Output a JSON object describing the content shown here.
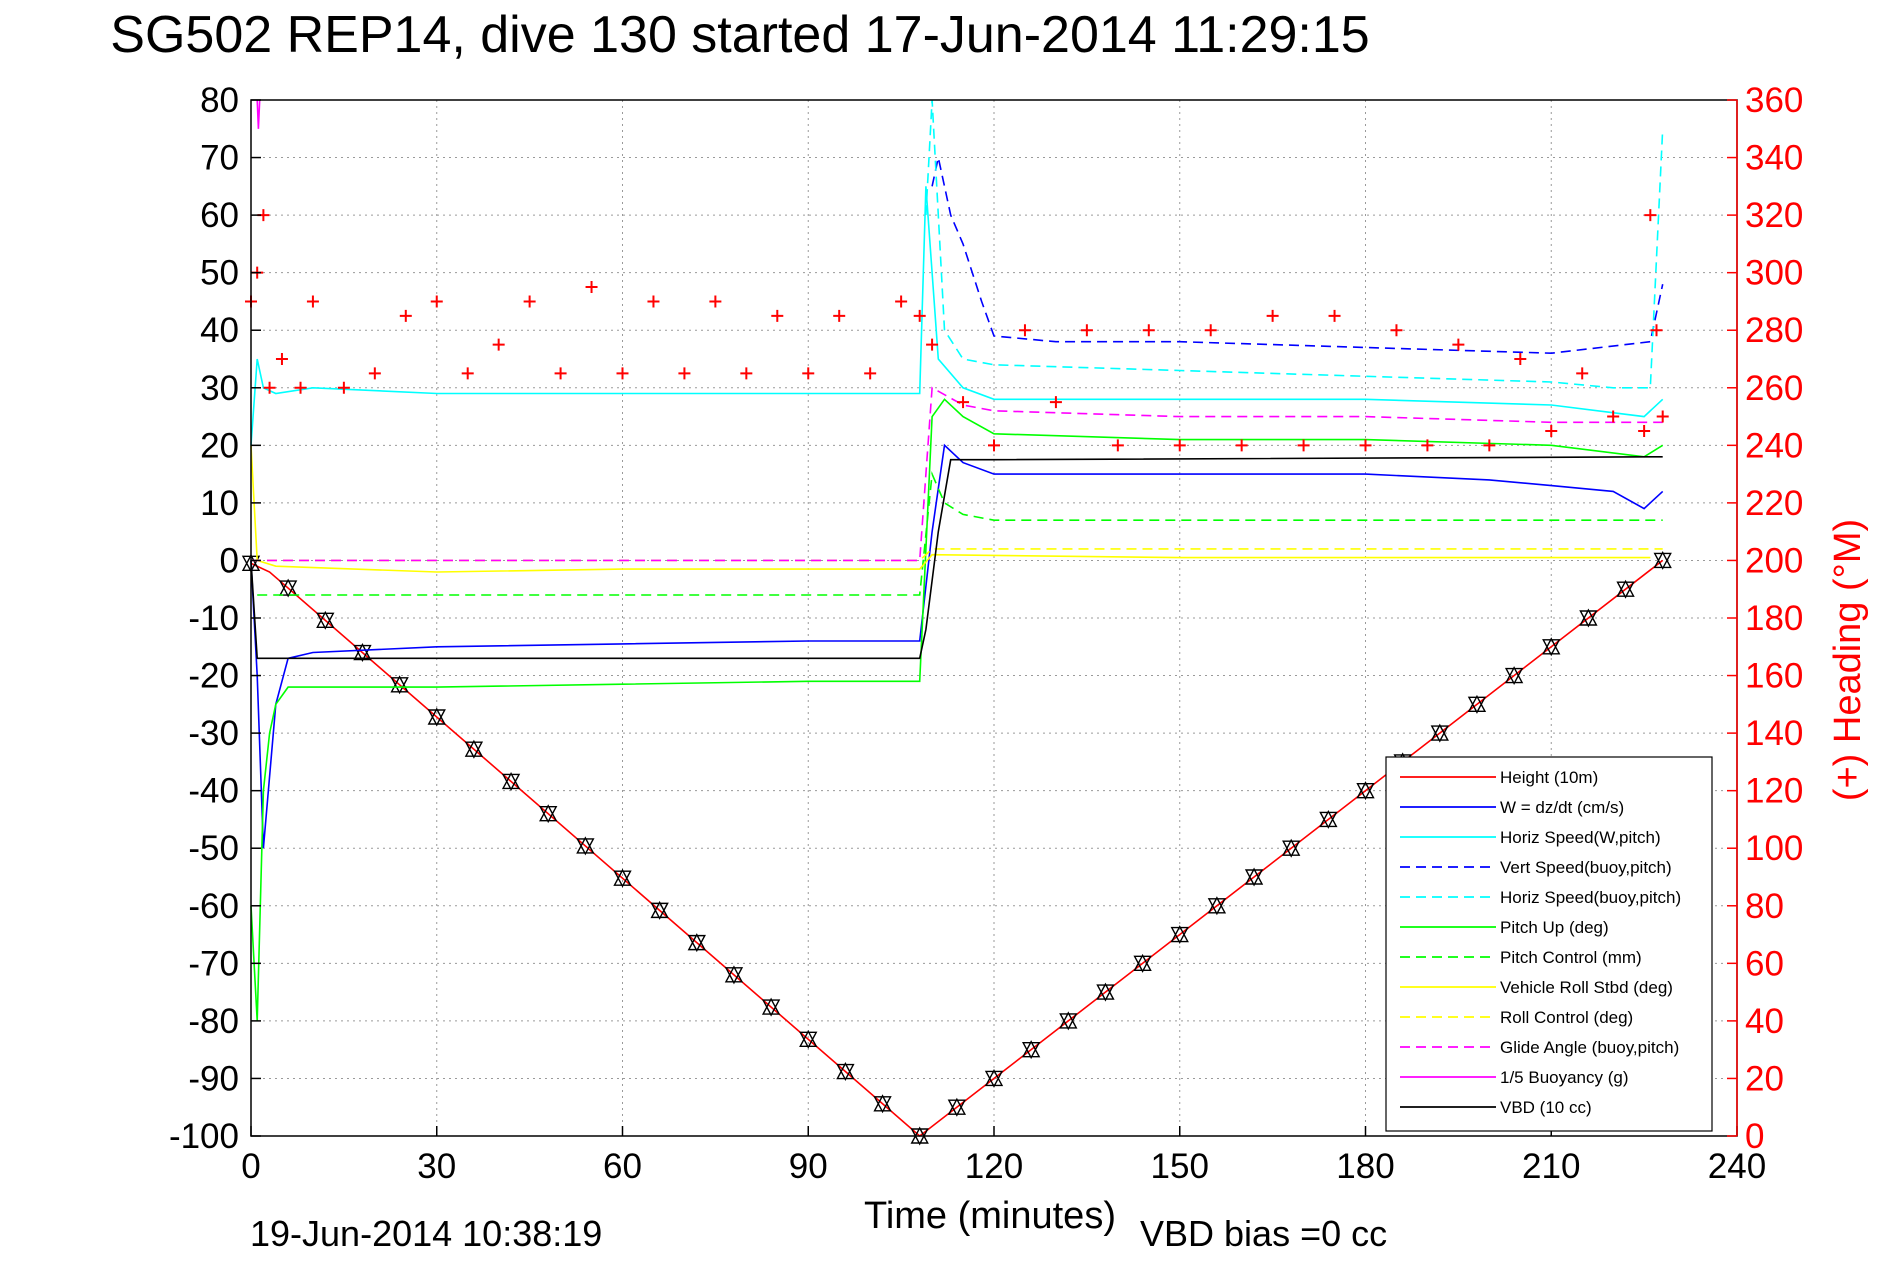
{
  "chart_data": {
    "type": "line",
    "title": "SG502 REP14, dive 130 started 17-Jun-2014 11:29:15",
    "xlabel": "Time (minutes)",
    "ylabel_right": "(+) Heading (°M)",
    "footer_left": "19-Jun-2014 10:38:19",
    "footer_right": "VBD bias =0 cc",
    "xlim": [
      0,
      240
    ],
    "ylim_left": [
      -100,
      80
    ],
    "ylim_right": [
      0,
      360
    ],
    "xticks": [
      "0",
      "30",
      "60",
      "90",
      "120",
      "150",
      "180",
      "210",
      "240"
    ],
    "yticks_left": [
      "80",
      "70",
      "60",
      "50",
      "40",
      "30",
      "20",
      "10",
      "0",
      "-10",
      "-20",
      "-30",
      "-40",
      "-50",
      "-60",
      "-70",
      "-80",
      "-90",
      "-100"
    ],
    "yticks_right": [
      "360",
      "340",
      "320",
      "300",
      "280",
      "260",
      "240",
      "220",
      "200",
      "180",
      "160",
      "140",
      "120",
      "100",
      "80",
      "60",
      "40",
      "20",
      "0"
    ],
    "grid": true,
    "legend_position": "bottom-right",
    "colors": {
      "red": "#ff0000",
      "blue": "#0000ff",
      "cyan": "#00ffff",
      "green": "#00ff00",
      "yellow": "#ffff00",
      "magenta": "#ff00ff",
      "black": "#000000"
    },
    "series": [
      {
        "name": "Height (10m)",
        "color": "#ff0000",
        "style": "solid",
        "x": [
          0,
          3,
          108,
          228
        ],
        "y": [
          -0.5,
          -2,
          -100,
          0
        ]
      },
      {
        "name": "W = dz/dt (cm/s)",
        "color": "#0000ff",
        "style": "solid",
        "x": [
          0,
          1,
          2,
          4,
          6,
          10,
          30,
          60,
          90,
          108,
          110,
          112,
          115,
          120,
          150,
          180,
          200,
          210,
          220,
          225,
          228
        ],
        "y": [
          0,
          -20,
          -50,
          -25,
          -17,
          -16,
          -15,
          -14.5,
          -14,
          -14,
          5,
          20,
          17,
          15,
          15,
          15,
          14,
          13,
          12,
          9,
          12
        ]
      },
      {
        "name": "Horiz Speed(W,pitch)",
        "color": "#00ffff",
        "style": "solid",
        "x": [
          0,
          1,
          2,
          4,
          10,
          30,
          60,
          90,
          108,
          109,
          111,
          115,
          120,
          150,
          180,
          210,
          225,
          228
        ],
        "y": [
          20,
          35,
          30,
          29,
          30,
          29,
          29,
          29,
          29,
          65,
          35,
          30,
          28,
          28,
          28,
          27,
          25,
          28
        ]
      },
      {
        "name": "Vert Speed(buoy,pitch)",
        "color": "#0000ff",
        "style": "dashed",
        "x": [
          110,
          111,
          113,
          115,
          118,
          120,
          130,
          150,
          180,
          210,
          226,
          228
        ],
        "y": [
          65,
          70,
          60,
          55,
          45,
          39,
          38,
          38,
          37,
          36,
          38,
          48
        ]
      },
      {
        "name": "Horiz Speed(buoy,pitch)",
        "color": "#00ffff",
        "style": "dashed",
        "x": [
          109,
          110,
          112,
          115,
          120,
          150,
          180,
          210,
          220,
          226,
          228
        ],
        "y": [
          60,
          80,
          40,
          35,
          34,
          33,
          32,
          31,
          30,
          30,
          75
        ]
      },
      {
        "name": "Pitch Up (deg)",
        "color": "#00ff00",
        "style": "solid",
        "x": [
          0,
          1,
          2,
          3,
          4,
          6,
          30,
          60,
          90,
          108,
          110,
          112,
          115,
          120,
          150,
          180,
          210,
          225,
          228
        ],
        "y": [
          -60,
          -80,
          -40,
          -30,
          -25,
          -22,
          -22,
          -21.5,
          -21,
          -21,
          25,
          28,
          25,
          22,
          21,
          21,
          20,
          18,
          20
        ]
      },
      {
        "name": "Pitch Control (mm)",
        "color": "#00ff00",
        "style": "dashed",
        "x": [
          1,
          108,
          110,
          112,
          115,
          120,
          228
        ],
        "y": [
          -6,
          -6,
          15,
          10,
          8,
          7,
          7
        ]
      },
      {
        "name": "Vehicle Roll Stbd (deg)",
        "color": "#ffff00",
        "style": "solid",
        "x": [
          0,
          1,
          4,
          30,
          60,
          90,
          108,
          110,
          150,
          180,
          210,
          226
        ],
        "y": [
          20,
          0,
          -1,
          -2,
          -1.5,
          -1.5,
          -1.5,
          1,
          0.5,
          0.5,
          0.5,
          0.5
        ]
      },
      {
        "name": "Roll Control (deg)",
        "color": "#ffff00",
        "style": "dashed",
        "x": [
          0,
          108,
          110,
          228
        ],
        "y": [
          0,
          0,
          2,
          2
        ]
      },
      {
        "name": "Glide Angle (buoy,pitch)",
        "color": "#ff00ff",
        "style": "dashed",
        "x": [
          0,
          108,
          110,
          115,
          120,
          150,
          180,
          210,
          228
        ],
        "y": [
          0,
          0,
          30,
          27,
          26,
          25,
          25,
          24,
          24
        ]
      },
      {
        "name": "1/5 Buoyancy (g)",
        "color": "#ff00ff",
        "style": "solid",
        "x": [
          1,
          1.2,
          1.4
        ],
        "y": [
          80,
          75,
          80
        ]
      },
      {
        "name": "VBD (10 cc)",
        "color": "#000000",
        "style": "solid",
        "x": [
          0,
          1,
          108,
          109,
          111,
          113,
          120,
          228
        ],
        "y": [
          0,
          -17,
          -17,
          -12,
          5,
          17.5,
          17.5,
          18
        ]
      },
      {
        "name": "Heading",
        "axis": "right",
        "color": "#ff0000",
        "style": "markers",
        "marker": "+",
        "x": [
          0,
          1,
          2,
          3,
          5,
          8,
          10,
          15,
          20,
          25,
          30,
          35,
          40,
          45,
          50,
          55,
          60,
          65,
          70,
          75,
          80,
          85,
          90,
          95,
          100,
          105,
          108,
          110,
          115,
          120,
          125,
          130,
          135,
          140,
          145,
          150,
          155,
          160,
          165,
          170,
          175,
          180,
          185,
          190,
          195,
          200,
          205,
          210,
          215,
          220,
          225,
          226,
          227,
          228
        ],
        "y": [
          290,
          300,
          320,
          260,
          270,
          260,
          290,
          260,
          265,
          285,
          290,
          265,
          275,
          290,
          265,
          295,
          265,
          290,
          265,
          290,
          265,
          285,
          265,
          285,
          265,
          290,
          285,
          275,
          255,
          240,
          280,
          255,
          280,
          240,
          280,
          240,
          280,
          240,
          285,
          240,
          285,
          240,
          280,
          240,
          275,
          240,
          270,
          245,
          265,
          250,
          245,
          320,
          280,
          250
        ]
      }
    ]
  }
}
